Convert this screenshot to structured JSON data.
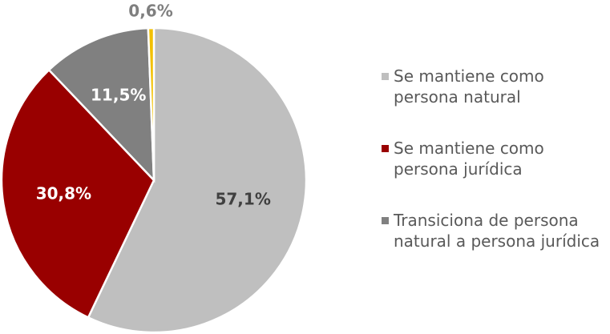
{
  "chart_data": {
    "type": "pie",
    "categories": [
      "Se mantiene como persona natural",
      "Se mantiene como persona jurídica",
      "Transiciona de persona natural a persona jurídica",
      null
    ],
    "values": [
      57.1,
      30.8,
      11.5,
      0.6
    ],
    "value_labels": [
      "57,1%",
      "30,8%",
      "11,5%",
      "0,6%"
    ],
    "colors": [
      "#bfbfbf",
      "#990000",
      "#808080",
      "#f2c000"
    ],
    "legend": "right"
  }
}
